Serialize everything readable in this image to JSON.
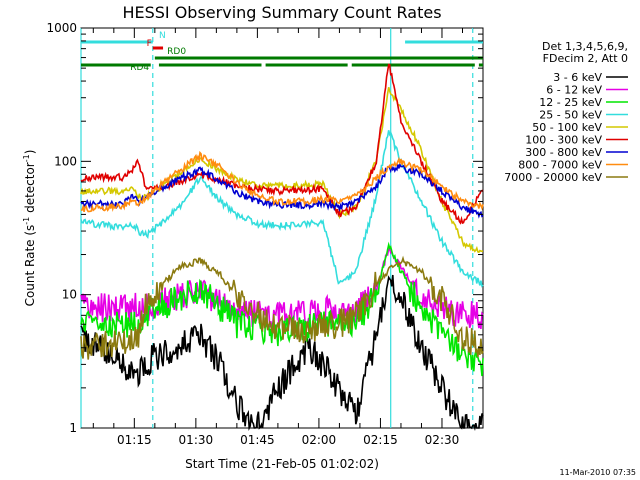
{
  "chart_data": {
    "type": "line",
    "title": "HESSI Observing Summary Count Rates",
    "xlabel": "Start Time (21-Feb-05 01:02:02)",
    "ylabel_parts": [
      "Count Rate (s",
      "-1",
      " detector",
      "-1",
      ")"
    ],
    "yscale": "log",
    "ylim": [
      1,
      1000
    ],
    "yticks": [
      {
        "value": 1,
        "label": "1"
      },
      {
        "value": 10,
        "label": "10"
      },
      {
        "value": 100,
        "label": "100"
      },
      {
        "value": 1000,
        "label": "1000"
      }
    ],
    "xlim": [
      62,
      160
    ],
    "xticks": [
      {
        "value": 75,
        "label": "01:15"
      },
      {
        "value": 90,
        "label": "01:30"
      },
      {
        "value": 105,
        "label": "01:45"
      },
      {
        "value": 120,
        "label": "02:00"
      },
      {
        "value": 135,
        "label": "02:15"
      },
      {
        "value": 150,
        "label": "02:30"
      }
    ],
    "grid": false,
    "legend": {
      "placement": "right",
      "header": [
        "Det 1,3,4,5,6,9,",
        "FDecim 2, Att 0"
      ],
      "entries": [
        {
          "label": "3 - 6 keV",
          "color": "#000000"
        },
        {
          "label": "6 - 12 keV",
          "color": "#e600e6"
        },
        {
          "label": "12 - 25 keV",
          "color": "#00e600"
        },
        {
          "label": "25 - 50 keV",
          "color": "#33dddd"
        },
        {
          "label": "50 - 100 keV",
          "color": "#d4c800"
        },
        {
          "label": "100 - 300 keV",
          "color": "#e00000"
        },
        {
          "label": "300 - 800 keV",
          "color": "#0000d0"
        },
        {
          "label": "800 - 7000 keV",
          "color": "#ff8c10"
        },
        {
          "label": "7000 - 20000 keV",
          "color": "#8b7a10"
        }
      ]
    },
    "series": [
      {
        "name": "3 - 6 keV",
        "color": "#000000",
        "points": [
          [
            62,
            5
          ],
          [
            76,
            2.5
          ],
          [
            78,
            3.2
          ],
          [
            86,
            4
          ],
          [
            91,
            5
          ],
          [
            96,
            3
          ],
          [
            100,
            1.5
          ],
          [
            105,
            1
          ],
          [
            110,
            2
          ],
          [
            117,
            4
          ],
          [
            121,
            3
          ],
          [
            125,
            2
          ],
          [
            129,
            1.2
          ],
          [
            134,
            5
          ],
          [
            137,
            13
          ],
          [
            140,
            10
          ],
          [
            145,
            4
          ],
          [
            150,
            2
          ],
          [
            155,
            1
          ],
          [
            160,
            1
          ]
        ]
      },
      {
        "name": "6 - 12 keV",
        "color": "#e600e6",
        "points": [
          [
            62,
            8
          ],
          [
            76,
            8
          ],
          [
            78,
            8
          ],
          [
            86,
            9.5
          ],
          [
            91,
            10.5
          ],
          [
            96,
            9
          ],
          [
            100,
            7.5
          ],
          [
            105,
            7.2
          ],
          [
            110,
            7
          ],
          [
            117,
            7.2
          ],
          [
            121,
            7.5
          ],
          [
            125,
            7.5
          ],
          [
            129,
            7.5
          ],
          [
            134,
            11
          ],
          [
            137,
            22
          ],
          [
            140,
            16
          ],
          [
            145,
            10
          ],
          [
            150,
            8
          ],
          [
            155,
            7
          ],
          [
            160,
            7
          ]
        ]
      },
      {
        "name": "12 - 25 keV",
        "color": "#00e600",
        "points": [
          [
            62,
            6
          ],
          [
            76,
            6
          ],
          [
            78,
            7
          ],
          [
            86,
            9.5
          ],
          [
            91,
            11
          ],
          [
            96,
            8
          ],
          [
            100,
            6
          ],
          [
            105,
            5.5
          ],
          [
            110,
            5.2
          ],
          [
            117,
            5.5
          ],
          [
            121,
            6
          ],
          [
            125,
            6
          ],
          [
            129,
            6
          ],
          [
            134,
            10
          ],
          [
            137,
            24
          ],
          [
            140,
            15
          ],
          [
            145,
            8
          ],
          [
            150,
            5
          ],
          [
            155,
            3.5
          ],
          [
            160,
            3
          ]
        ]
      },
      {
        "name": "25 - 50 keV",
        "color": "#33dddd",
        "points": [
          [
            62,
            35
          ],
          [
            72,
            32
          ],
          [
            75,
            33
          ],
          [
            76,
            30
          ],
          [
            78,
            28
          ],
          [
            86,
            45
          ],
          [
            91,
            75
          ],
          [
            96,
            50
          ],
          [
            100,
            40
          ],
          [
            105,
            34
          ],
          [
            110,
            33
          ],
          [
            117,
            34
          ],
          [
            121,
            35
          ],
          [
            125,
            12
          ],
          [
            129,
            15
          ],
          [
            134,
            55
          ],
          [
            137,
            170
          ],
          [
            140,
            100
          ],
          [
            145,
            50
          ],
          [
            150,
            25
          ],
          [
            155,
            15
          ],
          [
            160,
            12
          ]
        ]
      },
      {
        "name": "50 - 100 keV",
        "color": "#d4c800",
        "points": [
          [
            62,
            60
          ],
          [
            72,
            60
          ],
          [
            75,
            62
          ],
          [
            76,
            55
          ],
          [
            78,
            55
          ],
          [
            86,
            80
          ],
          [
            91,
            105
          ],
          [
            96,
            85
          ],
          [
            100,
            72
          ],
          [
            105,
            66
          ],
          [
            110,
            65
          ],
          [
            117,
            66
          ],
          [
            121,
            67
          ],
          [
            125,
            40
          ],
          [
            129,
            45
          ],
          [
            134,
            100
          ],
          [
            137,
            350
          ],
          [
            140,
            250
          ],
          [
            145,
            120
          ],
          [
            150,
            50
          ],
          [
            155,
            25
          ],
          [
            160,
            20
          ]
        ]
      },
      {
        "name": "100 - 300 keV",
        "color": "#e00000",
        "points": [
          [
            62,
            75
          ],
          [
            72,
            76
          ],
          [
            75,
            90
          ],
          [
            76,
            100
          ],
          [
            78,
            60
          ],
          [
            86,
            70
          ],
          [
            91,
            80
          ],
          [
            96,
            72
          ],
          [
            100,
            65
          ],
          [
            105,
            62
          ],
          [
            110,
            60
          ],
          [
            117,
            61
          ],
          [
            121,
            62
          ],
          [
            125,
            40
          ],
          [
            129,
            45
          ],
          [
            134,
            100
          ],
          [
            137,
            550
          ],
          [
            140,
            200
          ],
          [
            145,
            100
          ],
          [
            150,
            50
          ],
          [
            155,
            35
          ],
          [
            160,
            60
          ]
        ]
      },
      {
        "name": "300 - 800 keV",
        "color": "#0000d0",
        "points": [
          [
            62,
            48
          ],
          [
            72,
            48
          ],
          [
            75,
            55
          ],
          [
            76,
            50
          ],
          [
            78,
            55
          ],
          [
            86,
            75
          ],
          [
            91,
            85
          ],
          [
            96,
            72
          ],
          [
            100,
            58
          ],
          [
            105,
            50
          ],
          [
            110,
            47
          ],
          [
            117,
            47
          ],
          [
            121,
            48
          ],
          [
            125,
            45
          ],
          [
            129,
            50
          ],
          [
            134,
            65
          ],
          [
            137,
            90
          ],
          [
            140,
            90
          ],
          [
            145,
            80
          ],
          [
            150,
            60
          ],
          [
            155,
            45
          ],
          [
            160,
            40
          ]
        ]
      },
      {
        "name": "800 - 7000 keV",
        "color": "#ff8c10",
        "points": [
          [
            62,
            44
          ],
          [
            72,
            46
          ],
          [
            75,
            52
          ],
          [
            76,
            48
          ],
          [
            78,
            55
          ],
          [
            86,
            85
          ],
          [
            91,
            110
          ],
          [
            96,
            90
          ],
          [
            100,
            70
          ],
          [
            105,
            55
          ],
          [
            110,
            50
          ],
          [
            117,
            50
          ],
          [
            121,
            52
          ],
          [
            125,
            50
          ],
          [
            129,
            55
          ],
          [
            134,
            75
          ],
          [
            137,
            90
          ],
          [
            140,
            100
          ],
          [
            145,
            85
          ],
          [
            150,
            65
          ],
          [
            155,
            50
          ],
          [
            160,
            45
          ]
        ]
      },
      {
        "name": "7000 - 20000 keV",
        "color": "#8b7a10",
        "points": [
          [
            62,
            4
          ],
          [
            72,
            4.5
          ],
          [
            75,
            5
          ],
          [
            76,
            5
          ],
          [
            78,
            9
          ],
          [
            86,
            16
          ],
          [
            91,
            18
          ],
          [
            96,
            14
          ],
          [
            100,
            10
          ],
          [
            105,
            7
          ],
          [
            110,
            5.5
          ],
          [
            117,
            5.5
          ],
          [
            121,
            6
          ],
          [
            125,
            6
          ],
          [
            129,
            7
          ],
          [
            134,
            12
          ],
          [
            137,
            15
          ],
          [
            140,
            18
          ],
          [
            145,
            15
          ],
          [
            150,
            9
          ],
          [
            155,
            5
          ],
          [
            160,
            4
          ]
        ]
      }
    ],
    "vlines": [
      {
        "x": 62,
        "color": "#33dddd",
        "style": "solid"
      },
      {
        "x": 79.5,
        "color": "#33dddd",
        "style": "dashed"
      },
      {
        "x": 137.5,
        "color": "#33dddd",
        "style": "solid"
      },
      {
        "x": 157.5,
        "color": "#33dddd",
        "style": "dashed"
      }
    ],
    "flag_bars": [
      {
        "row": 1,
        "color": "#33dddd",
        "segments": [
          [
            62,
            79.5
          ],
          [
            141,
            160
          ]
        ]
      },
      {
        "row": 2,
        "color": "#e00000",
        "segments": [
          [
            79.5,
            82
          ]
        ]
      },
      {
        "row": 3,
        "color": "#007a00",
        "segments": [
          [
            80,
            160
          ]
        ]
      },
      {
        "row": 4,
        "color": "#007a00",
        "segments": [
          [
            62,
            79
          ],
          [
            81,
            106
          ],
          [
            107,
            127
          ],
          [
            128,
            158
          ],
          [
            159,
            160
          ]
        ]
      }
    ],
    "flag_labels": [
      {
        "text": "N",
        "color": "#33dddd",
        "x": 81,
        "row": 1
      },
      {
        "text": "F",
        "color": "#e00000",
        "x": 78,
        "row": 2
      },
      {
        "text": "RD0",
        "color": "#007a00",
        "x": 83,
        "row": 3
      },
      {
        "text": "RD4",
        "color": "#007a00",
        "x": 74,
        "row": 4
      }
    ]
  },
  "footer": {
    "timestamp": "11-Mar-2010 07:35"
  }
}
